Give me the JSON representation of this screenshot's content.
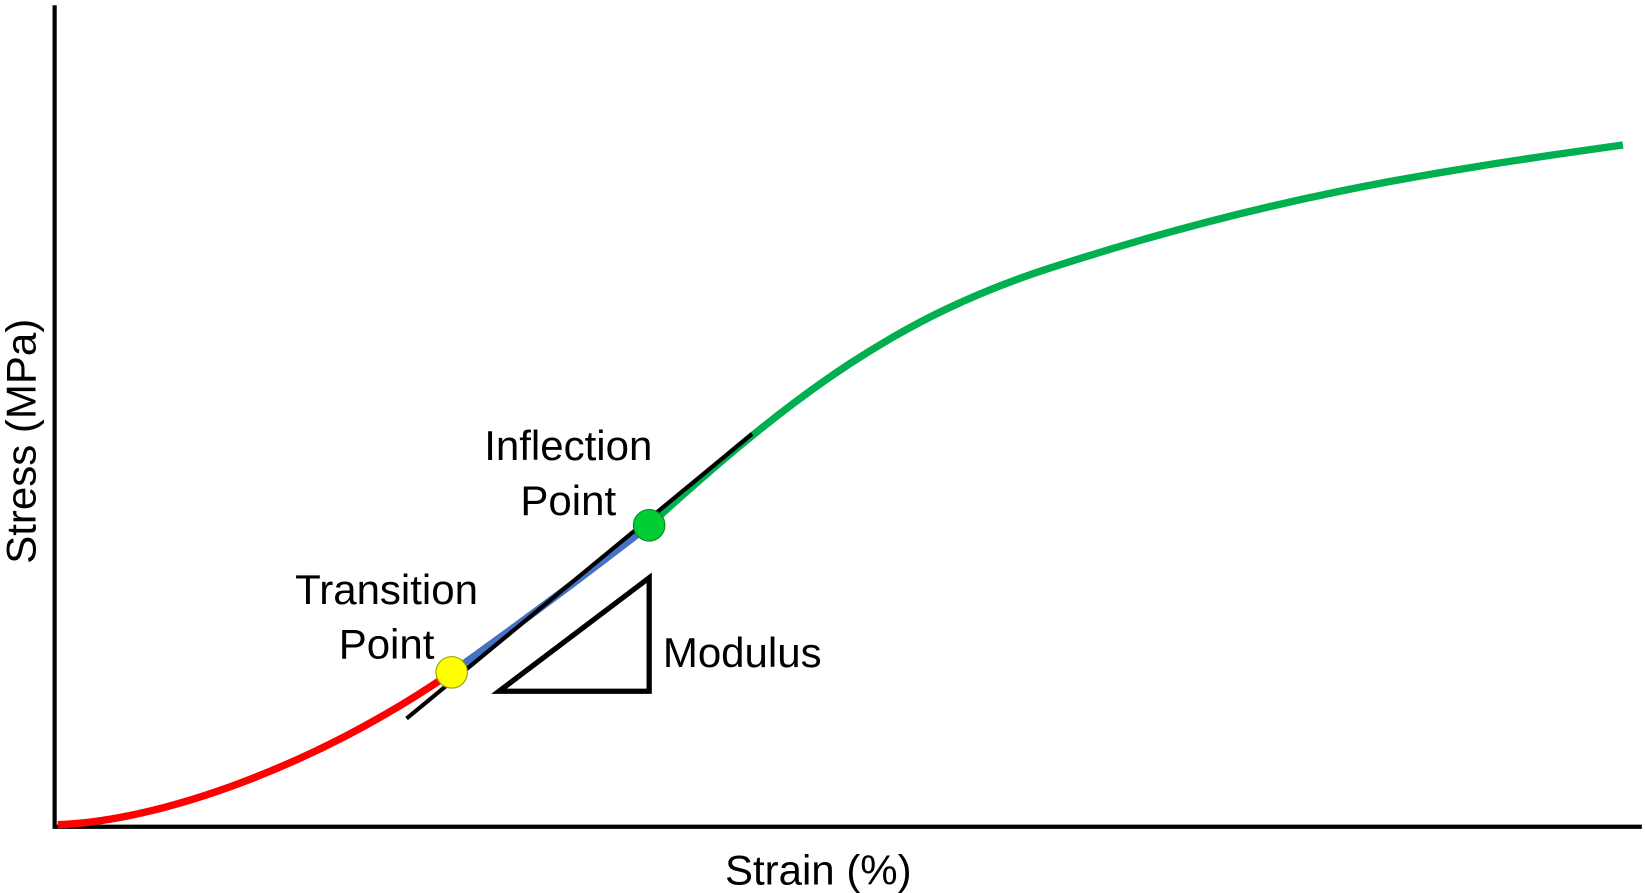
{
  "axes": {
    "x_label": "Strain (%)",
    "y_label": "Stress (MPa)"
  },
  "annotations": {
    "inflection_point": [
      "Inflection",
      "Point"
    ],
    "transition_point": [
      "Transition",
      "Point"
    ],
    "modulus": "Modulus"
  }
}
